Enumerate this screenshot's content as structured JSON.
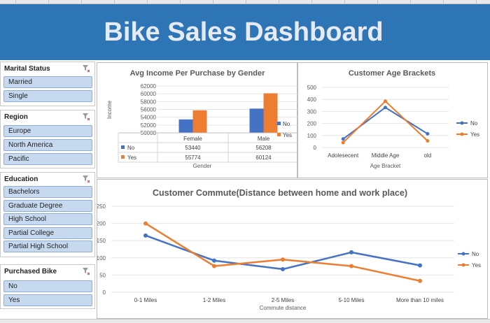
{
  "dashboard": {
    "title": "Bike Sales Dashboard"
  },
  "colors": {
    "banner": "#2e75b6",
    "no_series": "#4472c4",
    "yes_series": "#ed7d31",
    "slicer_item": "#c6d9ef"
  },
  "slicers": [
    {
      "title": "Marital Status",
      "items": [
        "Married",
        "Single"
      ]
    },
    {
      "title": "Region",
      "items": [
        "Europe",
        "North America",
        "Pacific"
      ]
    },
    {
      "title": "Education",
      "items": [
        "Bachelors",
        "Graduate Degree",
        "High School",
        "Partial College",
        "Partial High School"
      ]
    },
    {
      "title": "Purchased Bike",
      "items": [
        "No",
        "Yes"
      ]
    }
  ],
  "chart_data": [
    {
      "type": "bar",
      "title": "Avg Income Per Purchase by Gender",
      "xlabel": "Gender",
      "ylabel": "Income",
      "categories": [
        "Female",
        "Male"
      ],
      "series": [
        {
          "name": "No",
          "values": [
            53440,
            56208
          ]
        },
        {
          "name": "Yes",
          "values": [
            55774,
            60124
          ]
        }
      ],
      "ylim": [
        50000,
        62000
      ],
      "yticks": [
        "50000",
        "52000",
        "54000",
        "56000",
        "58000",
        "60000",
        "62000"
      ],
      "data_table": true,
      "legend": "right"
    },
    {
      "type": "line",
      "title": "Customer Age Brackets",
      "xlabel": "Age Bracket",
      "ylabel": "",
      "categories": [
        "Adolesecent",
        "Middle Age",
        "old"
      ],
      "series": [
        {
          "name": "No",
          "values": [
            71,
            333,
            114
          ]
        },
        {
          "name": "Yes",
          "values": [
            41,
            385,
            55
          ]
        }
      ],
      "ylim": [
        0,
        500
      ],
      "yticks": [
        "0",
        "100",
        "200",
        "300",
        "400",
        "500"
      ],
      "legend": "right"
    },
    {
      "type": "line",
      "title": "Customer Commute(Distance between home and work place)",
      "xlabel": "Commute distance",
      "ylabel": "",
      "categories": [
        "0-1 Miles",
        "1-2 Miles",
        "2-5 Miles",
        "5-10 Miles",
        "More than 10 miles"
      ],
      "series": [
        {
          "name": "No",
          "values": [
            165,
            92,
            67,
            116,
            78
          ]
        },
        {
          "name": "Yes",
          "values": [
            200,
            76,
            95,
            76,
            33
          ]
        }
      ],
      "ylim": [
        0,
        250
      ],
      "yticks": [
        "0",
        "50",
        "100",
        "150",
        "200",
        "250"
      ],
      "legend": "right"
    }
  ]
}
